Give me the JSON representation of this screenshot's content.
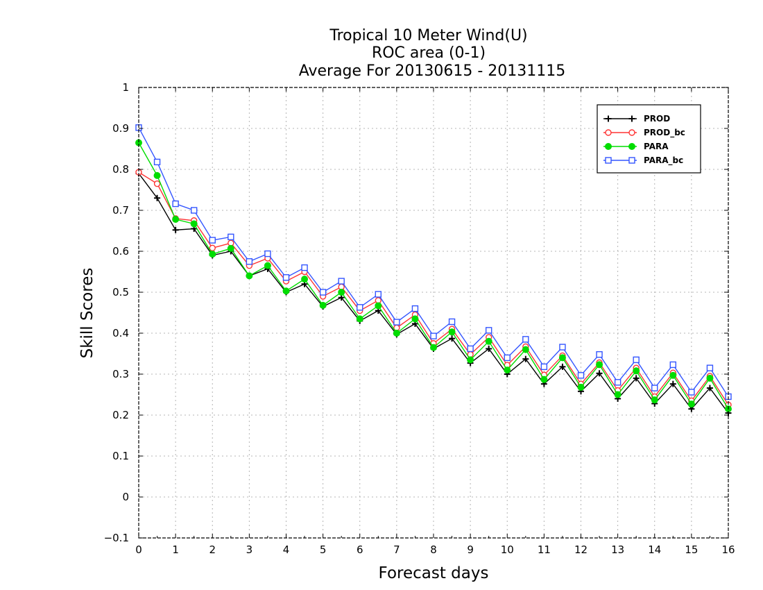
{
  "chart_data": {
    "type": "line",
    "title_lines": [
      "Tropical 10 Meter Wind(U)",
      "ROC area (0-1)",
      "Average For 20130615 - 20131115"
    ],
    "xlabel": "Forecast days",
    "ylabel": "Skill Scores",
    "xlim": [
      0,
      16
    ],
    "ylim": [
      -0.1,
      1
    ],
    "xticks": [
      0,
      1,
      2,
      3,
      4,
      5,
      6,
      7,
      8,
      9,
      10,
      11,
      12,
      13,
      14,
      15,
      16
    ],
    "yticks": [
      -0.1,
      0,
      0.1,
      0.2,
      0.3,
      0.4,
      0.5,
      0.6,
      0.7,
      0.8,
      0.9,
      1
    ],
    "ytick_labels": [
      "−0.1",
      "0",
      "0.1",
      "0.2",
      "0.3",
      "0.4",
      "0.5",
      "0.6",
      "0.7",
      "0.8",
      "0.9",
      "1"
    ],
    "grid": true,
    "legend_position": "top-right",
    "x": [
      0,
      0.5,
      1,
      1.5,
      2,
      2.5,
      3,
      3.5,
      4,
      4.5,
      5,
      5.5,
      6,
      6.5,
      7,
      7.5,
      8,
      8.5,
      9,
      9.5,
      10,
      10.5,
      11,
      11.5,
      12,
      12.5,
      13,
      13.5,
      14,
      14.5,
      15,
      15.5,
      16
    ],
    "series": [
      {
        "name": "PROD",
        "color": "#000000",
        "marker": "plus",
        "values": [
          0.79,
          0.73,
          0.652,
          0.655,
          0.59,
          0.6,
          0.54,
          0.557,
          0.5,
          0.52,
          0.465,
          0.487,
          0.43,
          0.455,
          0.397,
          0.423,
          0.362,
          0.387,
          0.327,
          0.362,
          0.3,
          0.337,
          0.276,
          0.318,
          0.258,
          0.302,
          0.24,
          0.29,
          0.228,
          0.276,
          0.215,
          0.266,
          0.205
        ]
      },
      {
        "name": "PROD_bc",
        "color": "#ff3333",
        "marker": "circle-open",
        "values": [
          0.793,
          0.765,
          0.68,
          0.675,
          0.608,
          0.62,
          0.565,
          0.583,
          0.527,
          0.55,
          0.49,
          0.513,
          0.455,
          0.48,
          0.413,
          0.445,
          0.375,
          0.41,
          0.348,
          0.39,
          0.322,
          0.367,
          0.298,
          0.345,
          0.276,
          0.328,
          0.26,
          0.315,
          0.245,
          0.303,
          0.235,
          0.295,
          0.225
        ]
      },
      {
        "name": "PARA",
        "color": "#00dd00",
        "marker": "circle-filled",
        "values": [
          0.865,
          0.785,
          0.678,
          0.667,
          0.593,
          0.607,
          0.54,
          0.565,
          0.503,
          0.532,
          0.468,
          0.5,
          0.435,
          0.467,
          0.4,
          0.435,
          0.365,
          0.403,
          0.335,
          0.38,
          0.31,
          0.36,
          0.287,
          0.34,
          0.268,
          0.323,
          0.25,
          0.308,
          0.237,
          0.297,
          0.227,
          0.29,
          0.215
        ]
      },
      {
        "name": "PARA_bc",
        "color": "#3355ff",
        "marker": "square-open",
        "values": [
          0.902,
          0.818,
          0.716,
          0.7,
          0.627,
          0.635,
          0.575,
          0.594,
          0.536,
          0.56,
          0.5,
          0.527,
          0.463,
          0.495,
          0.427,
          0.46,
          0.393,
          0.428,
          0.362,
          0.407,
          0.34,
          0.385,
          0.318,
          0.366,
          0.297,
          0.348,
          0.28,
          0.335,
          0.266,
          0.323,
          0.256,
          0.315,
          0.245
        ]
      }
    ]
  }
}
